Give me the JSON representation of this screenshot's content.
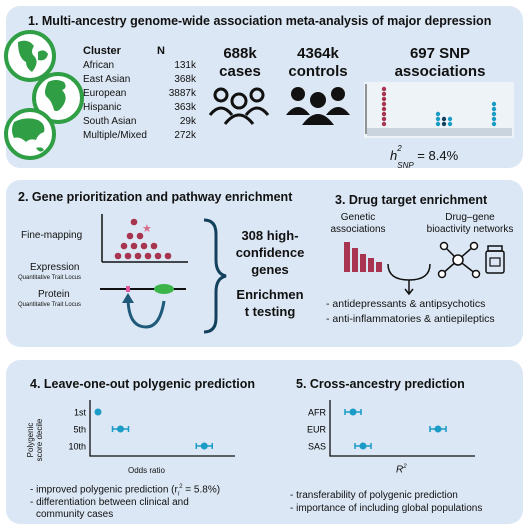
{
  "panel1": {
    "title": "1. Multi-ancestry genome-wide association meta-analysis of major depression",
    "col_cluster": "Cluster",
    "col_n": "N",
    "rows": [
      {
        "cluster": "African",
        "n": "131k"
      },
      {
        "cluster": "East Asian",
        "n": "368k"
      },
      {
        "cluster": "European",
        "n": "3887k"
      },
      {
        "cluster": "Hispanic",
        "n": "363k"
      },
      {
        "cluster": "South Asian",
        "n": "29k"
      },
      {
        "cluster": "Multiple/Mixed",
        "n": "272k"
      }
    ],
    "cases_value": "688k",
    "cases_label": "cases",
    "controls_value": "4364k",
    "controls_label": "controls",
    "snp_line1": "697 SNP",
    "snp_line2": "associations",
    "heritability_prefix": "h",
    "heritability_sup": "2",
    "heritability_sub": "SNP",
    "heritability_value": " = 8.4%"
  },
  "panel2": {
    "title": "2. Gene prioritization and pathway enrichment",
    "fine_mapping": "Fine-mapping",
    "expression": "Expression",
    "expression_sub": "Quantitative Trait Locus",
    "protein": "Protein",
    "protein_sub": "Quantitative Trait Locus",
    "genes_line1": "308 high-",
    "genes_line2": "confidence",
    "genes_line3": "genes",
    "enrich_line1": "Enrichmen",
    "enrich_line2": "t testing"
  },
  "panel3": {
    "title": "3. Drug target enrichment",
    "genetic_line1": "Genetic",
    "genetic_line2": "associations",
    "network_line1": "Drug–gene",
    "network_line2": "bioactivity networks",
    "bullet1": "- antidepressants & antipsychotics",
    "bullet2": "- anti-inflammatories & antiepileptics"
  },
  "panel4": {
    "title": "4. Leave-one-out polygenic prediction",
    "ylabel_line1": "Polygenic",
    "ylabel_line2": "score decile",
    "xlabel": "Odds ratio",
    "bullet1_prefix": "- improved polygenic prediction (r",
    "bullet1_sub": "l",
    "bullet1_sup": "2",
    "bullet1_suffix": " = 5.8%)",
    "bullet2_line1": "- differentiation between clinical and",
    "bullet2_line2": "community cases"
  },
  "panel5": {
    "title": "5. Cross-ancestry prediction",
    "xlabel_main": "R",
    "xlabel_sup": "2",
    "bullet1": "- transferability of polygenic prediction",
    "bullet2": "- importance of including global populations"
  },
  "colors": {
    "panel_bg": "#dbe7f4",
    "maroon": "#a8354f",
    "teal": "#1b9cc6",
    "navy": "#13405c",
    "green": "#2f9e44"
  },
  "chart_data": [
    {
      "type": "scatter",
      "title": "",
      "xlabel": "Odds ratio",
      "ylabel": "Polygenic score decile",
      "categories": [
        "1st",
        "5th",
        "10th"
      ],
      "x_relative": [
        0.0,
        0.18,
        0.85
      ],
      "error_bars": true
    },
    {
      "type": "scatter",
      "title": "",
      "xlabel": "R²",
      "ylabel": "",
      "categories": [
        "AFR",
        "EUR",
        "SAS"
      ],
      "x_relative": [
        0.12,
        0.8,
        0.2
      ],
      "error_bars": true
    }
  ]
}
